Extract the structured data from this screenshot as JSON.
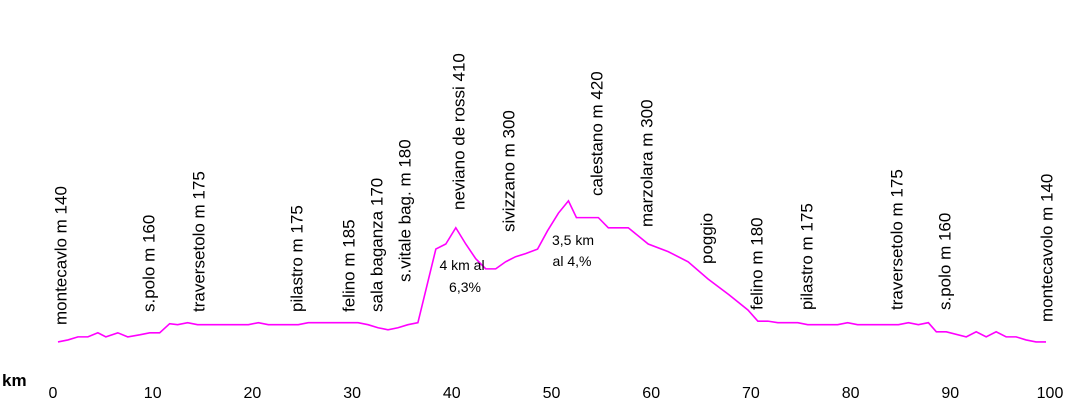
{
  "chart_data": {
    "type": "line",
    "xlabel": "km",
    "x": [
      0.5,
      1.5,
      2.5,
      3.5,
      4.5,
      5.3,
      6.5,
      7.5,
      8.7,
      9.7,
      10.7,
      11.7,
      12.5,
      13.5,
      14.5,
      19.6,
      20.6,
      21.6,
      24.6,
      25.6,
      30.6,
      31.6,
      32.6,
      33.6,
      34.6,
      35.6,
      36.6,
      38.4,
      39.4,
      40.4,
      41.4,
      42.4,
      43.4,
      44.4,
      45.4,
      46.4,
      47.4,
      48.6,
      49.6,
      50.7,
      51.7,
      52.5,
      54.7,
      55.7,
      57.7,
      59.7,
      61.7,
      63.7,
      65.7,
      67.8,
      69.7,
      70.7,
      71.7,
      72.7,
      74.7,
      75.7,
      78.7,
      79.7,
      80.7,
      84.8,
      85.8,
      86.8,
      87.8,
      88.6,
      89.6,
      91.6,
      92.6,
      93.6,
      94.6,
      95.6,
      96.6,
      97.6,
      98.6,
      99.6
    ],
    "series": [
      {
        "color": "#ff00ff",
        "values": [
          140,
          144,
          150,
          150,
          158,
          150,
          158,
          150,
          154,
          158,
          158,
          176,
          174,
          178,
          174,
          174,
          178,
          174,
          174,
          178,
          178,
          174,
          168,
          164,
          168,
          174,
          178,
          323,
          333,
          365,
          333,
          304,
          284,
          284,
          298,
          308,
          314,
          323,
          359,
          394,
          418,
          385,
          385,
          365,
          365,
          333,
          318,
          298,
          264,
          233,
          203,
          181,
          181,
          178,
          178,
          174,
          174,
          178,
          174,
          174,
          178,
          174,
          178,
          160,
          160,
          150,
          160,
          150,
          160,
          150,
          150,
          144,
          140,
          140
        ]
      }
    ],
    "xlim": [
      0,
      100
    ],
    "ylim": [
      0,
      800
    ],
    "xticks": [
      0,
      10,
      20,
      30,
      40,
      50,
      60,
      70,
      80,
      90,
      100
    ],
    "labels": [
      "montecavlo m 140",
      "s.polo m 160",
      "traversetolo m 175",
      "pilastro m 175",
      "felino m 185",
      "sala baganza 170",
      "s.vitale bag. m 180",
      "neviano de rossi 410",
      "sivizzano m 300",
      "calestano m 420",
      "marzolara m 300",
      "poggio",
      "felino m 180",
      "pilastro m 175",
      "traversetolo m 175",
      "s.polo m 160",
      "montecavolo m 140"
    ],
    "annotations": [
      "4 km al",
      "6,3%",
      "3,5 km",
      "al 4,%"
    ]
  }
}
